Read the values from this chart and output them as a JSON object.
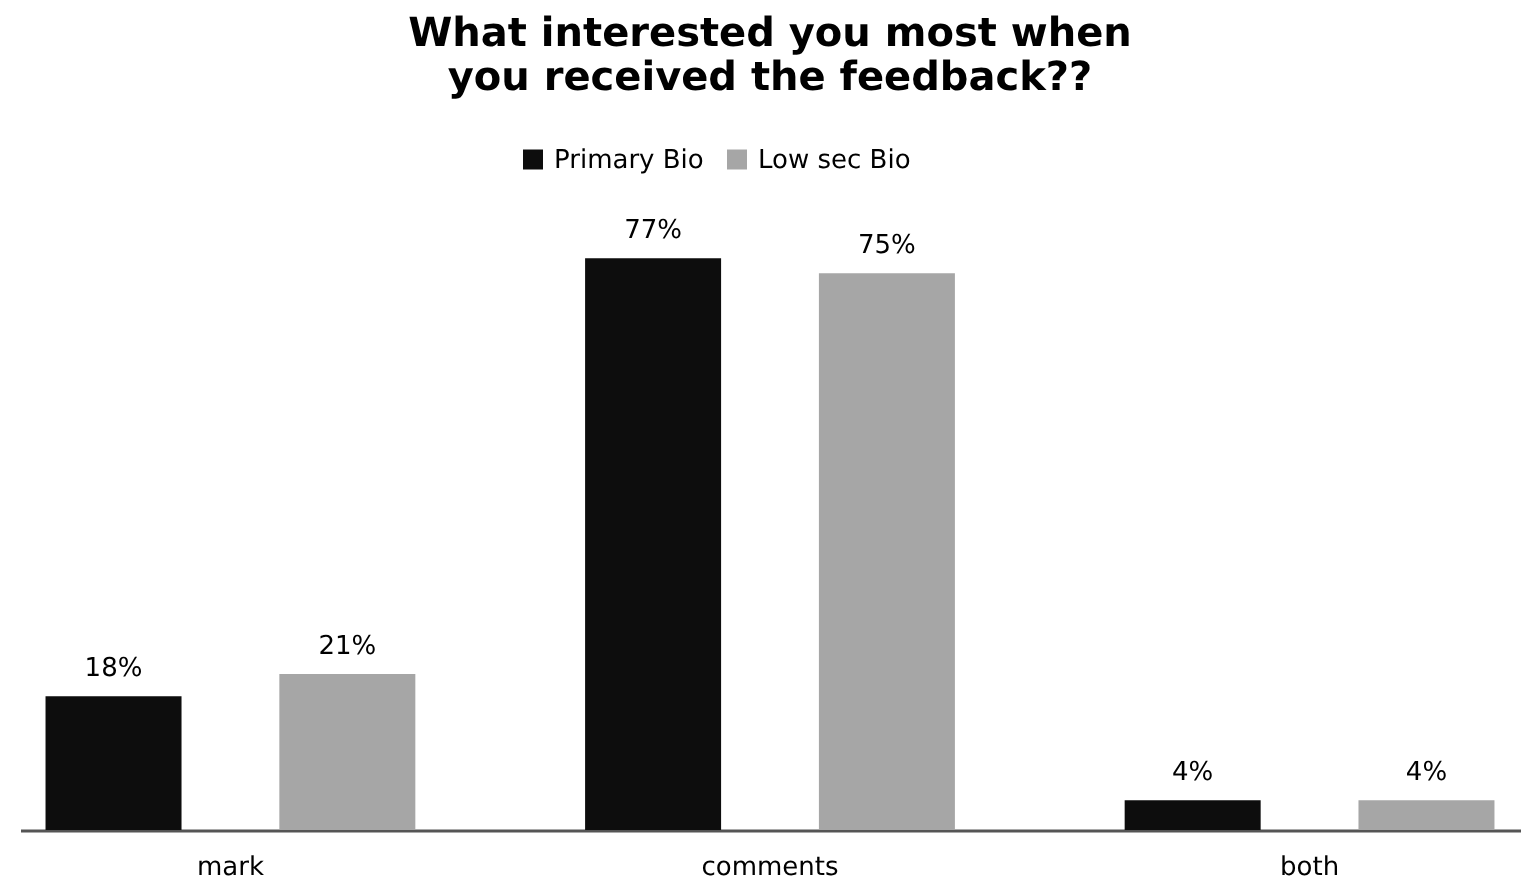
{
  "chart_data": {
    "type": "bar",
    "title": "What interested you most when you received the feedback??",
    "categories": [
      "mark",
      "comments",
      "both"
    ],
    "series": [
      {
        "name": "Primary Bio",
        "color": "#0d0d0d",
        "values": [
          18,
          77,
          4
        ],
        "value_labels": [
          "18%",
          "77%",
          "4%"
        ]
      },
      {
        "name": "Low sec Bio",
        "color": "#a6a6a6",
        "values": [
          21,
          75,
          4
        ],
        "value_labels": [
          "21%",
          "75%",
          "4%"
        ]
      }
    ],
    "legend": "top",
    "grid": false
  }
}
